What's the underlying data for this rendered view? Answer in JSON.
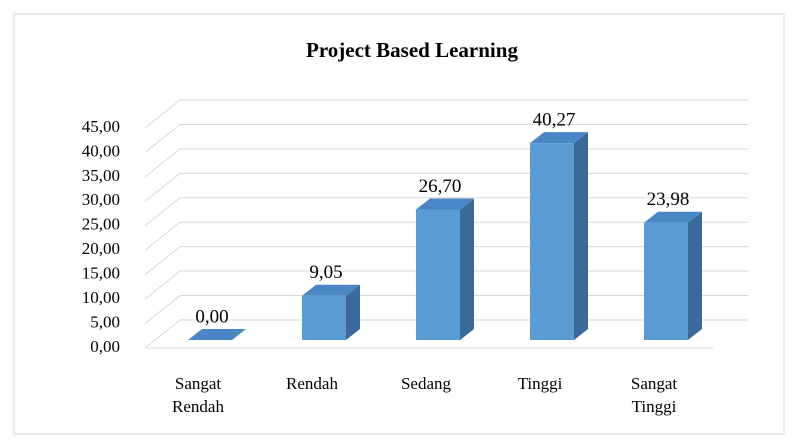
{
  "chart_data": {
    "type": "bar3d",
    "title": "Project Based Learning",
    "categories": [
      "Sangat Rendah",
      "Rendah",
      "Sedang",
      "Tinggi",
      "Sangat Tinggi"
    ],
    "values": [
      0,
      9.05,
      26.7,
      40.27,
      23.98
    ],
    "value_labels": [
      "0,00",
      "9,05",
      "26,70",
      "40,27",
      "23,98"
    ],
    "color": "#5b9bd5",
    "ylim": [
      0,
      45
    ],
    "yticks": [
      {
        "value": 0,
        "label": "0,00"
      },
      {
        "value": 5,
        "label": "5,00"
      },
      {
        "value": 10,
        "label": "10,00"
      },
      {
        "value": 15,
        "label": "15,00"
      },
      {
        "value": 20,
        "label": "20,00"
      },
      {
        "value": 25,
        "label": "25,00"
      },
      {
        "value": 30,
        "label": "30,00"
      },
      {
        "value": 35,
        "label": "35,00"
      },
      {
        "value": 40,
        "label": "40,00"
      },
      {
        "value": 45,
        "label": "45,00"
      }
    ],
    "grid": true
  }
}
